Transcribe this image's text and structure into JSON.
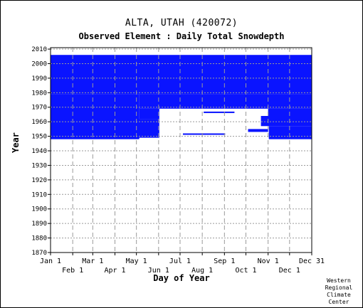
{
  "header": {
    "station": "ALTA, UTAH   (420072)",
    "element": "Observed Element : Daily Total Snowdepth"
  },
  "credit": {
    "line1": "Western",
    "line2": "Regional",
    "line3": "Climate",
    "line4": "Center"
  },
  "chart_data": {
    "type": "heatmap",
    "title": "ALTA, UTAH   (420072)",
    "subtitle": "Observed Element : Daily Total Snowdepth",
    "xlabel": "Day of Year",
    "ylabel": "Year",
    "xlim": [
      1,
      366
    ],
    "ylim": [
      1870,
      2011
    ],
    "xticks_top": [
      "Jan 1",
      "Mar 1",
      "May 1",
      "Jul 1",
      "Sep 1",
      "Nov 1",
      "Dec 31"
    ],
    "xticks_bottom": [
      "Feb 1",
      "Apr 1",
      "Jun 1",
      "Aug 1",
      "Oct 1",
      "Dec 1"
    ],
    "yticks": [
      1870,
      1880,
      1890,
      1900,
      1910,
      1920,
      1930,
      1940,
      1950,
      1960,
      1970,
      1980,
      1990,
      2000,
      2010
    ],
    "grid": true,
    "fill_color": "#0a14ff",
    "data_blocks": [
      {
        "day_start": 1,
        "day_end": 366,
        "year_start": 1979,
        "year_end": 2005
      },
      {
        "day_start": 1,
        "day_end": 125,
        "year_start": 1948,
        "year_end": 1978
      },
      {
        "day_start": 125,
        "day_end": 366,
        "year_start": 1969,
        "year_end": 1978
      },
      {
        "day_start": 125,
        "day_end": 153,
        "year_start": 1962,
        "year_end": 1968
      },
      {
        "day_start": 121,
        "day_end": 153,
        "year_start": 1949,
        "year_end": 1961
      },
      {
        "day_start": 305,
        "day_end": 366,
        "year_start": 1964,
        "year_end": 1968
      },
      {
        "day_start": 295,
        "day_end": 366,
        "year_start": 1957,
        "year_end": 1963
      },
      {
        "day_start": 306,
        "day_end": 366,
        "year_start": 1948,
        "year_end": 1956
      },
      {
        "day_start": 215,
        "day_end": 258,
        "year_start": 1966,
        "year_end": 1966
      },
      {
        "day_start": 186,
        "day_end": 245,
        "year_start": 1951,
        "year_end": 1951
      },
      {
        "day_start": 277,
        "day_end": 305,
        "year_start": 1953,
        "year_end": 1954
      }
    ]
  }
}
